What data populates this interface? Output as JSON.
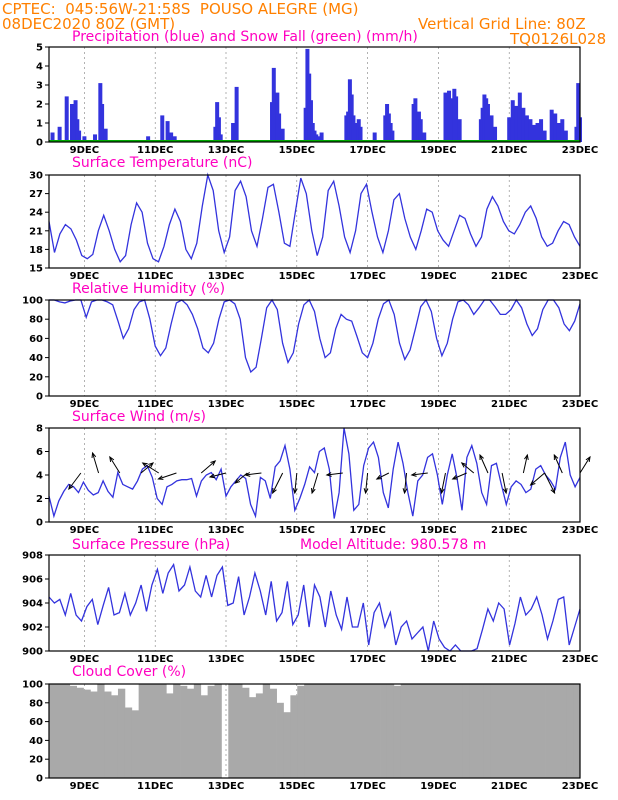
{
  "header": {
    "line1_left": "CPTEC:  045:56W-21:58S  POUSO ALEGRE (MG)",
    "line2_left": "08DEC2020 80Z (GMT)",
    "line2_right": "Vertical Grid Line: 80Z",
    "line3_right": "TQ0126L028"
  },
  "colors": {
    "header": "#ff8000",
    "titles": "#ff00c0",
    "series": "#3333dd",
    "snow": "#00aa00",
    "cloud": "#a9a9a9",
    "grid": "#808080"
  },
  "x_ticks": [
    "9DEC",
    "11DEC",
    "13DEC",
    "15DEC",
    "17DEC",
    "19DEC",
    "21DEC",
    "23DEC"
  ],
  "chart_data": [
    {
      "type": "bar",
      "title": "Precipitation (blue) and Snow Fall (green) (mm/h)",
      "ylim": [
        0,
        5
      ],
      "yticks": [
        "0",
        "1",
        "2",
        "3",
        "4",
        "5"
      ],
      "series": [
        {
          "name": "Precipitation",
          "x_day_offset": [
            0.1,
            0.3,
            0.5,
            0.65,
            0.7,
            0.75,
            0.8,
            0.85,
            1.0,
            1.3,
            1.45,
            1.5,
            1.6,
            2.8,
            3.2,
            3.35,
            3.45,
            3.55,
            4.7,
            4.75,
            4.8,
            4.85,
            5.2,
            5.3,
            6.3,
            6.35,
            6.45,
            6.5,
            6.6,
            7.25,
            7.3,
            7.35,
            7.4,
            7.45,
            7.5,
            7.55,
            7.6,
            7.7,
            8.4,
            8.45,
            8.5,
            8.55,
            8.6,
            8.7,
            8.75,
            8.8,
            9.2,
            9.5,
            9.55,
            9.6,
            9.65,
            9.7,
            10.3,
            10.35,
            10.45,
            10.5,
            10.6,
            11.2,
            11.3,
            11.4,
            11.45,
            11.5,
            11.6,
            12.2,
            12.25,
            12.3,
            12.35,
            12.4,
            12.5,
            12.6,
            13.0,
            13.1,
            13.2,
            13.3,
            13.4,
            13.5,
            13.6,
            13.7,
            13.8,
            13.9,
            14.0,
            14.2,
            14.3,
            14.4,
            14.5,
            14.6,
            14.9,
            14.95,
            15.0
          ],
          "values": [
            0.5,
            0.8,
            2.4,
            2.0,
            1.5,
            2.2,
            1.2,
            0.6,
            0.3,
            0.4,
            3.1,
            2.0,
            0.7,
            0.3,
            1.4,
            1.1,
            0.5,
            0.3,
            0.8,
            2.1,
            1.3,
            0.4,
            1.0,
            2.9,
            2.1,
            3.9,
            2.6,
            1.5,
            0.7,
            1.8,
            4.9,
            3.6,
            2.2,
            1.0,
            0.6,
            0.4,
            0.3,
            0.5,
            1.4,
            1.6,
            3.3,
            2.5,
            1.4,
            1.0,
            1.2,
            0.8,
            0.5,
            1.4,
            2.0,
            1.5,
            1.0,
            0.6,
            2.0,
            2.3,
            1.6,
            1.2,
            0.5,
            2.6,
            2.7,
            2.3,
            2.8,
            2.4,
            1.2,
            1.2,
            1.8,
            2.5,
            2.3,
            2.0,
            1.4,
            0.8,
            1.3,
            2.2,
            1.9,
            2.6,
            1.8,
            1.4,
            1.2,
            0.9,
            1.0,
            1.2,
            0.6,
            1.7,
            1.5,
            1.0,
            1.2,
            0.6,
            0.8,
            3.1,
            1.3
          ]
        },
        {
          "name": "Snow Fall",
          "values": "0"
        }
      ]
    },
    {
      "type": "line",
      "title": "Surface Temperature (nC)",
      "ylim": [
        15,
        30
      ],
      "yticks": [
        "15",
        "18",
        "21",
        "24",
        "27",
        "30"
      ],
      "series": [
        {
          "name": "Temperature",
          "values": [
            22.5,
            17.5,
            20.5,
            22,
            21.3,
            19.5,
            17,
            16.5,
            17.2,
            21,
            23.5,
            21,
            18,
            16,
            17,
            22,
            25.5,
            24,
            19,
            16.5,
            16,
            18.5,
            22,
            24.5,
            22.5,
            18,
            16.5,
            19,
            25,
            30.5,
            27.5,
            21,
            17.5,
            20,
            27.5,
            29,
            26.5,
            21,
            18.5,
            23,
            28,
            28.5,
            24,
            19,
            18.5,
            24,
            29.5,
            27,
            21,
            17,
            20,
            27.5,
            29,
            25,
            20,
            17.5,
            21,
            27,
            28.5,
            24,
            20,
            17.5,
            21,
            26,
            27,
            23,
            20,
            18,
            21,
            24.5,
            24,
            21,
            19.5,
            18.5,
            21,
            23.5,
            23,
            20.5,
            18.5,
            20,
            24.5,
            26.5,
            25,
            22.5,
            21,
            20.5,
            22,
            24,
            25,
            23,
            20,
            18.5,
            19,
            21,
            22.5,
            22,
            20,
            18.5
          ]
        }
      ]
    },
    {
      "type": "line",
      "title": "Relative Humidity (%)",
      "ylim": [
        0,
        100
      ],
      "yticks": [
        "0",
        "20",
        "40",
        "60",
        "80",
        "100"
      ],
      "series": [
        {
          "name": "Relative Humidity",
          "values": [
            100,
            100,
            98,
            97,
            99,
            100,
            100,
            82,
            98,
            100,
            100,
            98,
            95,
            78,
            60,
            70,
            90,
            98,
            100,
            80,
            52,
            42,
            50,
            75,
            97,
            100,
            95,
            85,
            70,
            50,
            45,
            55,
            80,
            98,
            100,
            96,
            80,
            40,
            25,
            30,
            60,
            92,
            100,
            90,
            55,
            35,
            45,
            75,
            95,
            100,
            88,
            60,
            40,
            45,
            70,
            85,
            80,
            78,
            62,
            45,
            40,
            55,
            80,
            96,
            100,
            85,
            55,
            38,
            48,
            70,
            93,
            100,
            88,
            60,
            42,
            55,
            80,
            98,
            100,
            95,
            85,
            92,
            100,
            100,
            93,
            85,
            85,
            90,
            100,
            92,
            75,
            63,
            70,
            90,
            100,
            100,
            92,
            75,
            68,
            78,
            96
          ]
        }
      ]
    },
    {
      "type": "line",
      "title": "Surface Wind (m/s)",
      "ylim": [
        0,
        8
      ],
      "yticks": [
        "0",
        "2",
        "4",
        "6",
        "8"
      ],
      "series": [
        {
          "name": "Wind Speed",
          "values": [
            2.2,
            0.5,
            1.8,
            2.6,
            3.2,
            3.0,
            2.5,
            3.4,
            2.7,
            2.3,
            2.5,
            3.5,
            2.6,
            2.1,
            4.2,
            3.2,
            3.0,
            2.8,
            3.5,
            4.5,
            4.8,
            3.8,
            2.0,
            1.5,
            3.0,
            3.2,
            3.5,
            3.6,
            3.6,
            3.7,
            2.2,
            3.5,
            4.0,
            4.2,
            3.6,
            4.5,
            2.2,
            3.0,
            3.5,
            4.0,
            3.7,
            1.5,
            0.5,
            3.8,
            3.5,
            2.0,
            4.7,
            5.2,
            6.5,
            4.5,
            1.0,
            2.0,
            3.2,
            4.7,
            4.2,
            6.0,
            6.3,
            4.5,
            0.3,
            2.5,
            8.0,
            5.8,
            1.0,
            1.5,
            4.8,
            6.3,
            6.8,
            5.5,
            2.5,
            1.2,
            4.5,
            6.8,
            5.0,
            2.5,
            0.5,
            3.5,
            4.0,
            5.5,
            5.8,
            4.0,
            1.5,
            4.0,
            5.8,
            3.7,
            1.0,
            5.5,
            6.5,
            5.0,
            2.5,
            1.5,
            4.8,
            5.0,
            3.2,
            1.5,
            3.0,
            3.5,
            3.2,
            2.5,
            2.8,
            4.5,
            4.8,
            4.0,
            3.5,
            2.8,
            5.5,
            6.8,
            4.0,
            3.0,
            3.8
          ]
        }
      ],
      "vectors": "wind direction arrows"
    },
    {
      "type": "line",
      "title": "Surface Pressure (hPa)",
      "annotation": "Model Altitude: 980.578 m",
      "ylim": [
        900,
        908
      ],
      "yticks": [
        "900",
        "902",
        "904",
        "906",
        "908"
      ],
      "series": [
        {
          "name": "Pressure",
          "values": [
            904.5,
            904.0,
            904.3,
            903.0,
            904.8,
            903.0,
            902.5,
            903.7,
            904.3,
            902.2,
            903.8,
            905.3,
            903.0,
            903.2,
            904.8,
            903.0,
            904.0,
            905.5,
            903.3,
            905.5,
            906.8,
            904.8,
            906.5,
            907.2,
            905.0,
            905.5,
            907.0,
            905.0,
            904.5,
            906.3,
            904.5,
            906.3,
            907.0,
            903.8,
            904.0,
            906.2,
            903.0,
            904.5,
            906.5,
            905.0,
            903.0,
            905.8,
            902.5,
            903.2,
            905.8,
            902.2,
            903.0,
            905.5,
            902.0,
            905.5,
            904.5,
            902.0,
            905.0,
            903.0,
            901.8,
            904.5,
            902.0,
            902.0,
            904.0,
            900.5,
            903.2,
            904.0,
            902.0,
            903.2,
            900.5,
            902.0,
            902.5,
            901.0,
            901.5,
            902.0,
            900.0,
            902.5,
            901.0,
            900.3,
            899.5,
            900.5,
            899.0,
            900.0,
            899.0,
            900.2,
            901.8,
            903.5,
            902.5,
            904.0,
            903.5,
            900.5,
            902.3,
            904.5,
            903.0,
            903.5,
            904.5,
            903.0,
            901.0,
            902.5,
            904.3,
            904.5,
            900.5,
            902.0,
            903.5
          ]
        }
      ]
    },
    {
      "type": "area",
      "title": "Cloud Cover (%)",
      "ylim": [
        0,
        100
      ],
      "yticks": [
        "0",
        "20",
        "40",
        "60",
        "80",
        "100"
      ],
      "series": [
        {
          "name": "Cloud Cover",
          "values": [
            100,
            100,
            100,
            98,
            96,
            94,
            92,
            100,
            92,
            88,
            95,
            75,
            72,
            100,
            100,
            100,
            100,
            90,
            100,
            98,
            95,
            100,
            88,
            98,
            100,
            0,
            100,
            100,
            96,
            86,
            90,
            100,
            95,
            80,
            70,
            88,
            98,
            100,
            100,
            100,
            100,
            100,
            100,
            100,
            100,
            100,
            100,
            100,
            100,
            100,
            98,
            100,
            100,
            100,
            100,
            100,
            100,
            100,
            100,
            100,
            100,
            100,
            100,
            100,
            100,
            100,
            100,
            100,
            100,
            100,
            100,
            100,
            100,
            100,
            100,
            100,
            100
          ]
        }
      ]
    }
  ]
}
